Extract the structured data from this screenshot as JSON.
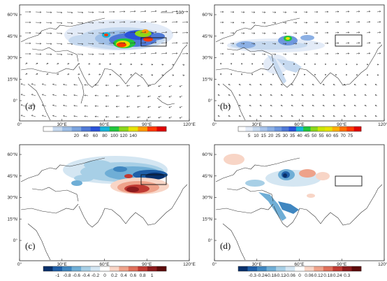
{
  "figure": {
    "lat_labels": [
      "60°N",
      "45°N",
      "30°N",
      "15°N",
      "0°"
    ],
    "lon_labels": [
      "0°",
      "30°E",
      "60°E",
      "90°E",
      "120°E"
    ],
    "reference_vector_label": "100"
  },
  "panels": [
    {
      "id": "a",
      "label": "(a)",
      "show_reference_vector": true,
      "colorbar": {
        "ticks": [
          "20",
          "40",
          "60",
          "80",
          "100",
          "120",
          "140"
        ],
        "colors": [
          "#ffffff",
          "#c6d9ef",
          "#9fbfe6",
          "#7aa3de",
          "#4f79d6",
          "#2a52d9",
          "#17b4d9",
          "#21c63d",
          "#8ad61b",
          "#e6e300",
          "#ff9b00",
          "#ff3a00",
          "#e00000"
        ]
      }
    },
    {
      "id": "b",
      "label": "(b)",
      "show_reference_vector": false,
      "colorbar": {
        "ticks": [
          "5",
          "10",
          "15",
          "20",
          "25",
          "30",
          "35",
          "40",
          "45",
          "50",
          "55",
          "60",
          "65",
          "70",
          "75"
        ],
        "colors": [
          "#ffffff",
          "#e3ebf7",
          "#c6d9ef",
          "#a9c4ea",
          "#8cb0e4",
          "#6e97de",
          "#4f79d6",
          "#2a52d9",
          "#17b4d9",
          "#21c63d",
          "#8ad61b",
          "#cce600",
          "#e6e300",
          "#ffb000",
          "#ff7000",
          "#ff3a00",
          "#e00000"
        ]
      }
    },
    {
      "id": "c",
      "label": "(c)",
      "show_reference_vector": false,
      "colorbar": {
        "ticks": [
          "-1",
          "-0.8",
          "-0.6",
          "-0.4",
          "-0.2",
          "0",
          "0.2",
          "0.4",
          "0.6",
          "0.8",
          "1"
        ],
        "colors": [
          "#08306b",
          "#1f5fa8",
          "#3f86c0",
          "#6faed6",
          "#a7cfe6",
          "#d4e6f2",
          "#ffffff",
          "#f8d5c6",
          "#eea28a",
          "#df6f5a",
          "#c03a33",
          "#8c1b1d",
          "#5c0a0a"
        ]
      }
    },
    {
      "id": "d",
      "label": "(d)",
      "show_reference_vector": false,
      "colorbar": {
        "ticks": [
          "-0.3",
          "-0.24",
          "-0.18",
          "-0.12",
          "-0.06",
          "0",
          "0.06",
          "0.12",
          "0.18",
          "0.24",
          "0.3"
        ],
        "colors": [
          "#08306b",
          "#1f5fa8",
          "#3f86c0",
          "#6faed6",
          "#a7cfe6",
          "#d4e6f2",
          "#ffffff",
          "#f8d5c6",
          "#eea28a",
          "#df6f5a",
          "#c03a33",
          "#8c1b1d",
          "#5c0a0a"
        ]
      }
    }
  ]
}
